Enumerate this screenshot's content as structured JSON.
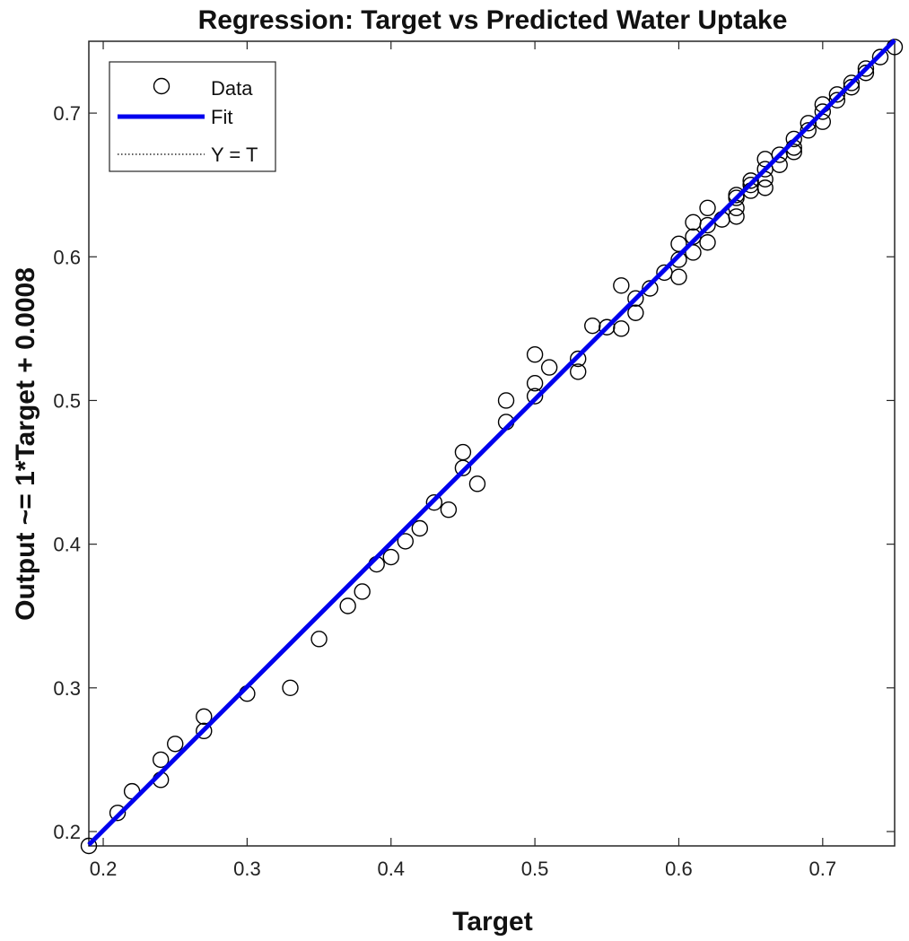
{
  "chart_data": {
    "type": "scatter",
    "title": "Regression: Target vs Predicted Water Uptake",
    "xlabel": "Target",
    "ylabel": "Output ~= 1*Target + 0.0008",
    "xlim": [
      0.19,
      0.75
    ],
    "ylim": [
      0.19,
      0.75
    ],
    "xticks": [
      0.2,
      0.3,
      0.4,
      0.5,
      0.6,
      0.7
    ],
    "yticks": [
      0.2,
      0.3,
      0.4,
      0.5,
      0.6,
      0.7
    ],
    "xtick_labels": [
      "0.2",
      "0.3",
      "0.4",
      "0.5",
      "0.6",
      "0.7"
    ],
    "ytick_labels": [
      "0.2",
      "0.3",
      "0.4",
      "0.5",
      "0.6",
      "0.7"
    ],
    "grid": false,
    "legend": {
      "position": "top-left",
      "entries": [
        "Data",
        "Fit",
        "Y = T"
      ]
    },
    "fit": {
      "slope": 1,
      "intercept": 0.0008,
      "color": "#0000ee"
    },
    "identity_line": {
      "color": "#000000",
      "style": "dotted"
    },
    "series": [
      {
        "name": "Data",
        "marker": "open-circle",
        "points": [
          [
            0.19,
            0.19
          ],
          [
            0.21,
            0.213
          ],
          [
            0.22,
            0.228
          ],
          [
            0.24,
            0.236
          ],
          [
            0.24,
            0.25
          ],
          [
            0.25,
            0.261
          ],
          [
            0.27,
            0.27
          ],
          [
            0.27,
            0.28
          ],
          [
            0.3,
            0.296
          ],
          [
            0.33,
            0.3
          ],
          [
            0.35,
            0.334
          ],
          [
            0.37,
            0.357
          ],
          [
            0.38,
            0.367
          ],
          [
            0.39,
            0.386
          ],
          [
            0.4,
            0.391
          ],
          [
            0.41,
            0.402
          ],
          [
            0.42,
            0.411
          ],
          [
            0.43,
            0.429
          ],
          [
            0.44,
            0.424
          ],
          [
            0.45,
            0.453
          ],
          [
            0.45,
            0.464
          ],
          [
            0.46,
            0.442
          ],
          [
            0.48,
            0.485
          ],
          [
            0.48,
            0.5
          ],
          [
            0.5,
            0.503
          ],
          [
            0.5,
            0.512
          ],
          [
            0.5,
            0.532
          ],
          [
            0.51,
            0.523
          ],
          [
            0.53,
            0.52
          ],
          [
            0.53,
            0.529
          ],
          [
            0.54,
            0.552
          ],
          [
            0.55,
            0.551
          ],
          [
            0.56,
            0.55
          ],
          [
            0.56,
            0.58
          ],
          [
            0.57,
            0.561
          ],
          [
            0.57,
            0.571
          ],
          [
            0.58,
            0.578
          ],
          [
            0.59,
            0.589
          ],
          [
            0.6,
            0.586
          ],
          [
            0.6,
            0.598
          ],
          [
            0.6,
            0.609
          ],
          [
            0.61,
            0.603
          ],
          [
            0.61,
            0.614
          ],
          [
            0.61,
            0.624
          ],
          [
            0.62,
            0.61
          ],
          [
            0.62,
            0.622
          ],
          [
            0.62,
            0.634
          ],
          [
            0.63,
            0.626
          ],
          [
            0.64,
            0.628
          ],
          [
            0.64,
            0.634
          ],
          [
            0.64,
            0.641
          ],
          [
            0.64,
            0.643
          ],
          [
            0.65,
            0.646
          ],
          [
            0.65,
            0.65
          ],
          [
            0.65,
            0.653
          ],
          [
            0.66,
            0.648
          ],
          [
            0.66,
            0.654
          ],
          [
            0.66,
            0.661
          ],
          [
            0.66,
            0.668
          ],
          [
            0.67,
            0.664
          ],
          [
            0.67,
            0.671
          ],
          [
            0.68,
            0.673
          ],
          [
            0.68,
            0.676
          ],
          [
            0.68,
            0.682
          ],
          [
            0.69,
            0.688
          ],
          [
            0.69,
            0.693
          ],
          [
            0.7,
            0.694
          ],
          [
            0.7,
            0.701
          ],
          [
            0.7,
            0.706
          ],
          [
            0.71,
            0.709
          ],
          [
            0.71,
            0.713
          ],
          [
            0.72,
            0.718
          ],
          [
            0.72,
            0.721
          ],
          [
            0.73,
            0.728
          ],
          [
            0.73,
            0.731
          ],
          [
            0.74,
            0.739
          ],
          [
            0.75,
            0.746
          ]
        ]
      }
    ]
  }
}
